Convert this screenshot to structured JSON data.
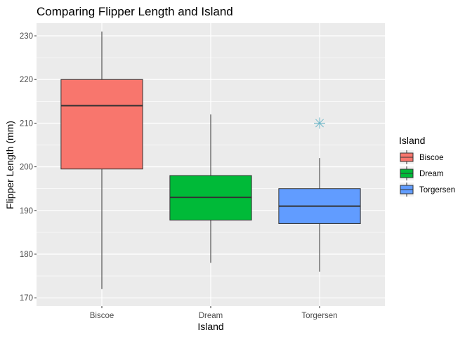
{
  "chart_data": {
    "type": "boxplot",
    "title": "Comparing Flipper Length and Island",
    "xlabel": "Island",
    "ylabel": "Flipper Length (mm)",
    "ylim": [
      168.1,
      232.9
    ],
    "yticks": [
      170,
      180,
      190,
      200,
      210,
      220,
      230
    ],
    "categories": [
      "Biscoe",
      "Dream",
      "Torgersen"
    ],
    "legend": {
      "title": "Island",
      "position": "right"
    },
    "boxes": [
      {
        "category": "Biscoe",
        "min": 172,
        "q1": 199.5,
        "median": 214,
        "q3": 220,
        "max": 231,
        "outliers": [],
        "fill": "#F8766D"
      },
      {
        "category": "Dream",
        "min": 178,
        "q1": 187.8,
        "median": 193,
        "q3": 198,
        "max": 212,
        "outliers": [],
        "fill": "#00BA38"
      },
      {
        "category": "Torgersen",
        "min": 176,
        "q1": 187,
        "median": 191,
        "q3": 195,
        "max": 202,
        "outliers": [
          210
        ],
        "fill": "#619CFF"
      }
    ],
    "outlier_color": "#6FB8C9",
    "outlier_shape": "asterisk",
    "grid": true,
    "panel_background": "#EBEBEB"
  }
}
